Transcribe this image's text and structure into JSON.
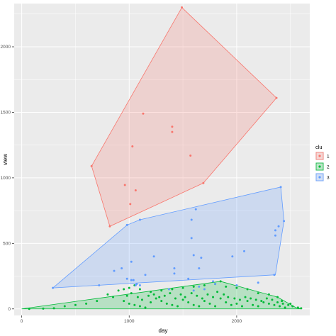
{
  "chart_data": {
    "type": "scatter",
    "xlabel": "day",
    "ylabel": "view",
    "xlim": [
      -70,
      2680
    ],
    "ylim": [
      -50,
      2330
    ],
    "x_ticks": [
      0,
      1000,
      2000
    ],
    "y_ticks": [
      0,
      500,
      1000,
      1500,
      2000
    ],
    "x_tick_labels": [
      "0",
      "1000",
      "2000"
    ],
    "y_tick_labels": [
      "0",
      "500",
      "1000",
      "1500",
      "2000"
    ],
    "grid": true,
    "legend_position": "right",
    "legend": {
      "title": "clu"
    },
    "series": [
      {
        "name": "1",
        "color": "#F8766D",
        "points": [
          [
            1490,
            2300
          ],
          [
            2370,
            1610
          ],
          [
            1130,
            1490
          ],
          [
            1400,
            1390
          ],
          [
            1400,
            1350
          ],
          [
            1030,
            1240
          ],
          [
            1570,
            1170
          ],
          [
            650,
            1090
          ],
          [
            960,
            945
          ],
          [
            1060,
            905
          ],
          [
            1690,
            960
          ],
          [
            1010,
            800
          ],
          [
            820,
            630
          ]
        ],
        "hull": [
          [
            1490,
            2300
          ],
          [
            2370,
            1610
          ],
          [
            1690,
            960
          ],
          [
            820,
            630
          ],
          [
            650,
            1090
          ]
        ]
      },
      {
        "name": "2",
        "color": "#00BA38",
        "points": [
          [
            70,
            0
          ],
          [
            300,
            5
          ],
          [
            500,
            30
          ],
          [
            700,
            60
          ],
          [
            800,
            110
          ],
          [
            900,
            140
          ],
          [
            950,
            150
          ],
          [
            1000,
            160
          ],
          [
            1050,
            180
          ],
          [
            1100,
            150
          ],
          [
            1200,
            130
          ],
          [
            1300,
            140
          ],
          [
            1400,
            150
          ],
          [
            1500,
            160
          ],
          [
            1600,
            170
          ],
          [
            1700,
            180
          ],
          [
            1800,
            190
          ],
          [
            1850,
            210
          ],
          [
            1900,
            170
          ],
          [
            2000,
            160
          ],
          [
            2100,
            150
          ],
          [
            2200,
            120
          ],
          [
            2300,
            110
          ],
          [
            2380,
            90
          ],
          [
            2420,
            60
          ],
          [
            2500,
            40
          ],
          [
            2570,
            10
          ],
          [
            2600,
            5
          ],
          [
            200,
            2
          ],
          [
            400,
            20
          ],
          [
            600,
            40
          ],
          [
            850,
            90
          ],
          [
            950,
            60
          ],
          [
            1000,
            40
          ],
          [
            1050,
            30
          ],
          [
            1100,
            20
          ],
          [
            1150,
            10
          ],
          [
            1200,
            50
          ],
          [
            1250,
            80
          ],
          [
            1300,
            60
          ],
          [
            1350,
            40
          ],
          [
            1400,
            30
          ],
          [
            1450,
            20
          ],
          [
            1500,
            70
          ],
          [
            1550,
            50
          ],
          [
            1600,
            30
          ],
          [
            1650,
            20
          ],
          [
            1700,
            60
          ],
          [
            1750,
            40
          ],
          [
            1800,
            20
          ],
          [
            1850,
            80
          ],
          [
            1900,
            50
          ],
          [
            1950,
            30
          ],
          [
            2000,
            40
          ],
          [
            2050,
            20
          ],
          [
            2100,
            60
          ],
          [
            2150,
            30
          ],
          [
            2200,
            20
          ],
          [
            2250,
            50
          ],
          [
            2300,
            40
          ],
          [
            2350,
            30
          ],
          [
            2400,
            20
          ],
          [
            2450,
            10
          ],
          [
            980,
            100
          ],
          [
            1020,
            120
          ],
          [
            1080,
            90
          ],
          [
            1120,
            70
          ],
          [
            1180,
            100
          ],
          [
            1230,
            110
          ],
          [
            1280,
            90
          ],
          [
            1330,
            100
          ],
          [
            1380,
            120
          ],
          [
            1430,
            80
          ],
          [
            1480,
            110
          ],
          [
            1520,
            90
          ],
          [
            1580,
            120
          ],
          [
            1630,
            100
          ],
          [
            1680,
            80
          ],
          [
            1730,
            110
          ],
          [
            1780,
            90
          ],
          [
            1820,
            130
          ],
          [
            1880,
            110
          ],
          [
            1920,
            90
          ],
          [
            1980,
            80
          ],
          [
            2030,
            70
          ],
          [
            2080,
            90
          ],
          [
            2130,
            80
          ],
          [
            2180,
            70
          ],
          [
            2230,
            60
          ],
          [
            2280,
            80
          ],
          [
            2330,
            70
          ],
          [
            2380,
            50
          ],
          [
            2430,
            40
          ],
          [
            2480,
            30
          ],
          [
            2520,
            20
          ]
        ],
        "hull": [
          [
            0,
            0
          ],
          [
            1850,
            210
          ],
          [
            2380,
            90
          ],
          [
            2550,
            10
          ],
          [
            2600,
            0
          ]
        ]
      },
      {
        "name": "3",
        "color": "#619CFF",
        "points": [
          [
            2410,
            930
          ],
          [
            2440,
            670
          ],
          [
            2390,
            630
          ],
          [
            2360,
            600
          ],
          [
            2360,
            560
          ],
          [
            1620,
            760
          ],
          [
            1580,
            680
          ],
          [
            1100,
            680
          ],
          [
            980,
            640
          ],
          [
            1580,
            540
          ],
          [
            1600,
            410
          ],
          [
            1670,
            390
          ],
          [
            1960,
            400
          ],
          [
            2070,
            440
          ],
          [
            1230,
            400
          ],
          [
            1020,
            360
          ],
          [
            1420,
            310
          ],
          [
            1650,
            310
          ],
          [
            860,
            290
          ],
          [
            980,
            230
          ],
          [
            1020,
            220
          ],
          [
            1040,
            220
          ],
          [
            1060,
            180
          ],
          [
            1070,
            190
          ],
          [
            1100,
            180
          ],
          [
            1420,
            270
          ],
          [
            1550,
            230
          ],
          [
            1650,
            170
          ],
          [
            1780,
            210
          ],
          [
            1800,
            190
          ],
          [
            2350,
            260
          ],
          [
            290,
            160
          ],
          [
            720,
            180
          ],
          [
            930,
            310
          ],
          [
            1150,
            260
          ],
          [
            1370,
            150
          ],
          [
            1600,
            140
          ],
          [
            1700,
            150
          ],
          [
            2000,
            180
          ],
          [
            2200,
            200
          ]
        ],
        "hull": [
          [
            290,
            160
          ],
          [
            980,
            640
          ],
          [
            1100,
            680
          ],
          [
            2410,
            930
          ],
          [
            2440,
            670
          ],
          [
            2360,
            260
          ]
        ]
      }
    ]
  }
}
